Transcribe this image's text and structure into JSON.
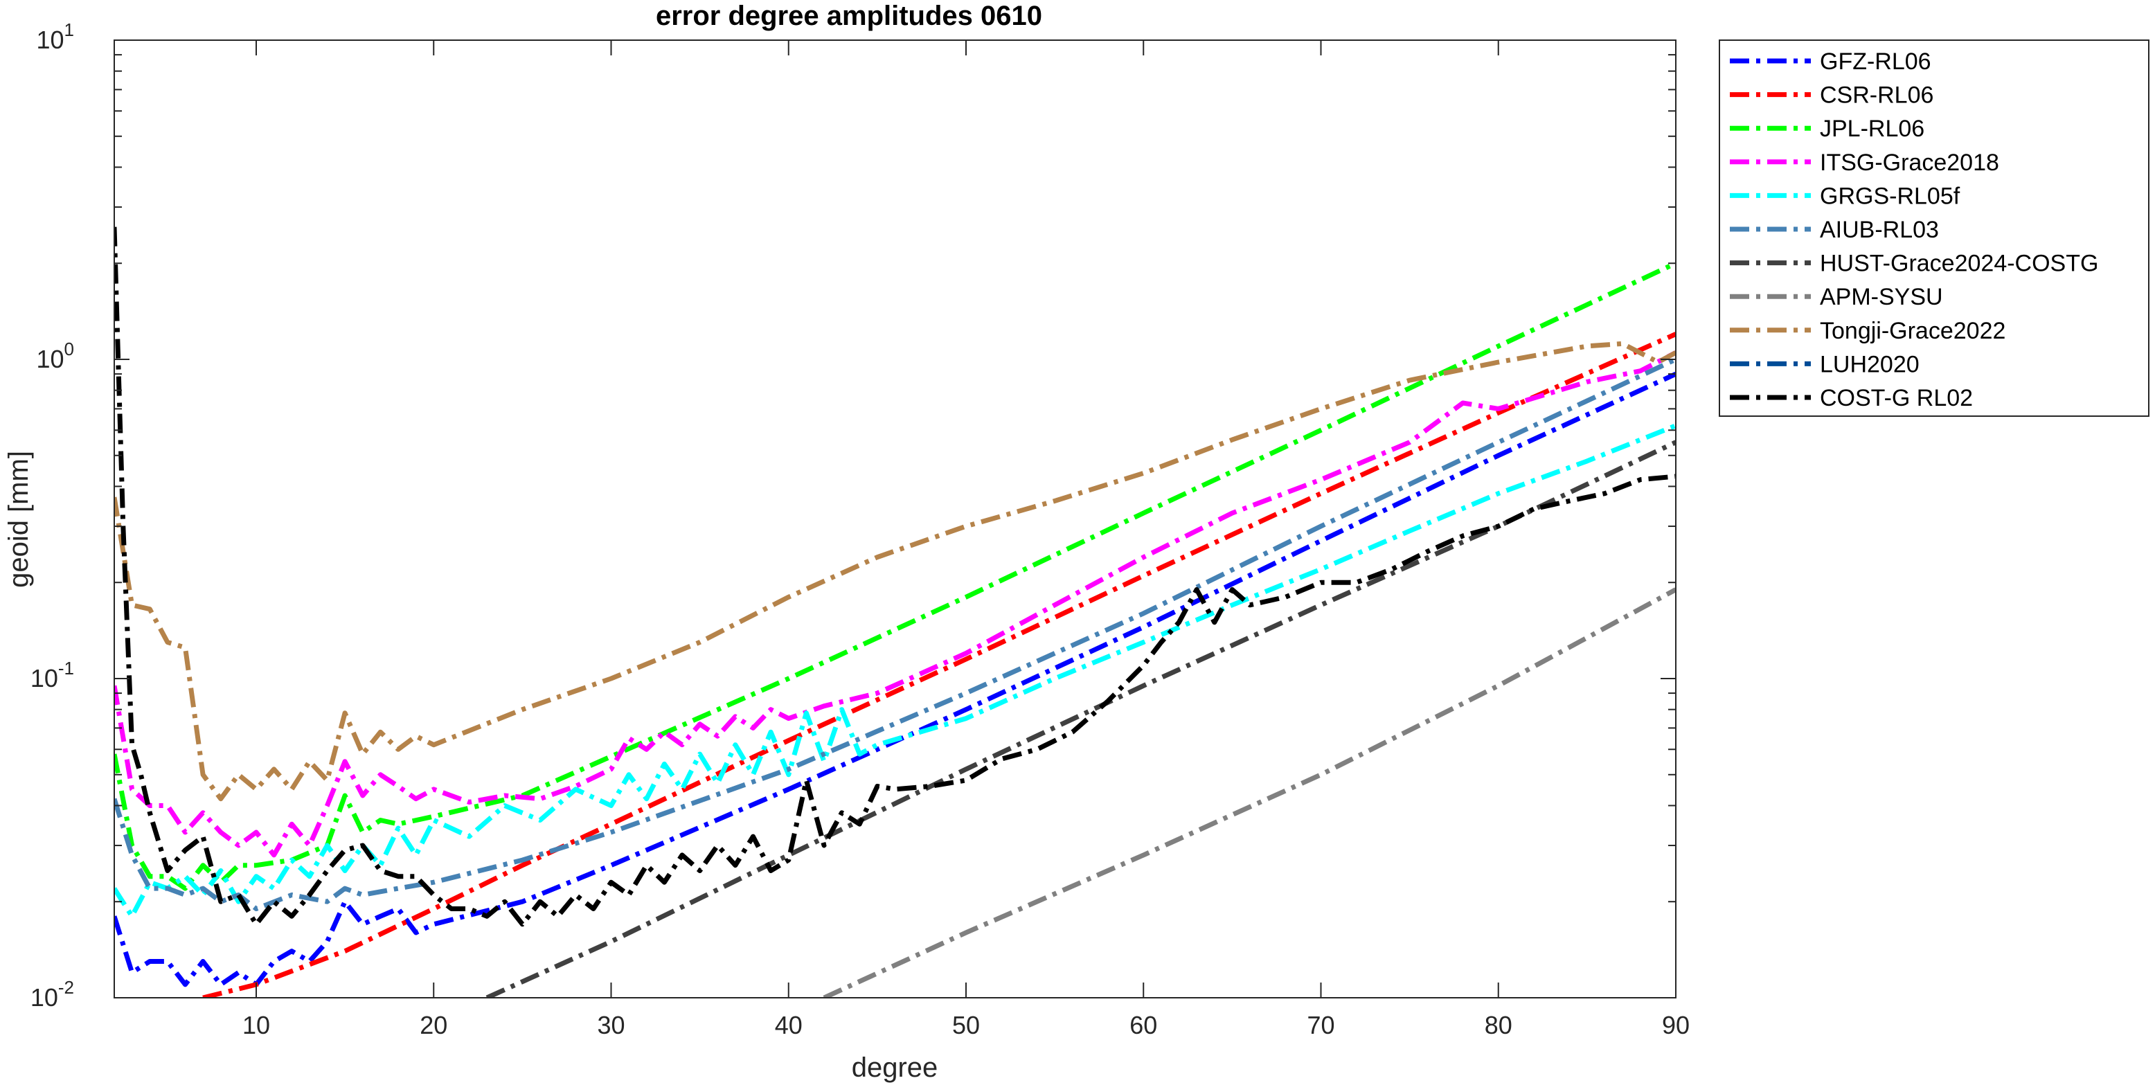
{
  "chart_data": {
    "type": "line",
    "title": "error degree amplitudes 0610",
    "xlabel": "degree",
    "ylabel": "geoid [mm]",
    "xlim": [
      2,
      90
    ],
    "ylim": [
      0.01,
      10
    ],
    "yscale": "log",
    "grid": false,
    "legend_position": "outside-right",
    "xticks": [
      10,
      20,
      30,
      40,
      50,
      60,
      70,
      80,
      90
    ],
    "yticks": [
      {
        "value": 0.01,
        "base": "10",
        "exp": "-2"
      },
      {
        "value": 0.1,
        "base": "10",
        "exp": "-1"
      },
      {
        "value": 1,
        "base": "10",
        "exp": "0"
      },
      {
        "value": 10,
        "base": "10",
        "exp": "1"
      }
    ],
    "series": [
      {
        "name": "GFZ-RL06",
        "color": "#0000ff",
        "x": [
          2,
          3,
          4,
          5,
          6,
          7,
          8,
          9,
          10,
          11,
          12,
          13,
          14,
          15,
          16,
          17,
          18,
          19,
          20,
          25,
          30,
          40,
          50,
          60,
          70,
          80,
          90
        ],
        "y": [
          0.018,
          0.012,
          0.013,
          0.013,
          0.011,
          0.013,
          0.011,
          0.012,
          0.011,
          0.013,
          0.014,
          0.013,
          0.015,
          0.02,
          0.017,
          0.018,
          0.019,
          0.016,
          0.017,
          0.02,
          0.026,
          0.045,
          0.08,
          0.145,
          0.27,
          0.5,
          0.9
        ]
      },
      {
        "name": "CSR-RL06",
        "color": "#ff0000",
        "x": [
          7,
          10,
          15,
          20,
          25,
          30,
          40,
          50,
          60,
          70,
          80,
          90
        ],
        "y": [
          0.01,
          0.011,
          0.014,
          0.019,
          0.026,
          0.035,
          0.064,
          0.115,
          0.21,
          0.38,
          0.68,
          1.2
        ]
      },
      {
        "name": "JPL-RL06",
        "color": "#00ff00",
        "x": [
          2,
          3,
          4,
          5,
          6,
          7,
          8,
          9,
          10,
          12,
          14,
          15,
          16,
          17,
          18,
          20,
          25,
          30,
          40,
          50,
          60,
          70,
          80,
          90
        ],
        "y": [
          0.058,
          0.03,
          0.024,
          0.024,
          0.022,
          0.026,
          0.023,
          0.026,
          0.026,
          0.027,
          0.03,
          0.043,
          0.033,
          0.036,
          0.035,
          0.037,
          0.043,
          0.057,
          0.1,
          0.18,
          0.33,
          0.6,
          1.1,
          2.0
        ]
      },
      {
        "name": "ITSG-Grace2018",
        "color": "#ff00ff",
        "x": [
          2,
          3,
          4,
          5,
          6,
          7,
          8,
          9,
          10,
          11,
          12,
          13,
          14,
          15,
          16,
          17,
          18,
          19,
          20,
          22,
          24,
          26,
          28,
          30,
          31,
          32,
          33,
          34,
          35,
          36,
          37,
          38,
          39,
          40,
          42,
          45,
          50,
          55,
          60,
          65,
          70,
          75,
          78,
          80,
          85,
          88,
          90
        ],
        "y": [
          0.095,
          0.045,
          0.04,
          0.04,
          0.033,
          0.038,
          0.033,
          0.03,
          0.033,
          0.028,
          0.035,
          0.03,
          0.04,
          0.055,
          0.043,
          0.05,
          0.046,
          0.042,
          0.045,
          0.041,
          0.043,
          0.042,
          0.046,
          0.052,
          0.065,
          0.06,
          0.068,
          0.062,
          0.072,
          0.066,
          0.076,
          0.07,
          0.08,
          0.075,
          0.082,
          0.09,
          0.12,
          0.17,
          0.24,
          0.33,
          0.42,
          0.55,
          0.73,
          0.7,
          0.85,
          0.92,
          1.05
        ]
      },
      {
        "name": "GRGS-RL05f",
        "color": "#00ffff",
        "x": [
          2,
          3,
          4,
          5,
          6,
          7,
          8,
          9,
          10,
          11,
          12,
          13,
          14,
          15,
          16,
          17,
          18,
          19,
          20,
          22,
          24,
          26,
          28,
          30,
          31,
          32,
          33,
          34,
          35,
          36,
          37,
          38,
          39,
          40,
          41,
          42,
          43,
          44,
          45,
          50,
          55,
          60,
          65,
          70,
          75,
          80,
          85,
          90
        ],
        "y": [
          0.022,
          0.018,
          0.023,
          0.022,
          0.024,
          0.021,
          0.025,
          0.02,
          0.024,
          0.022,
          0.027,
          0.024,
          0.03,
          0.025,
          0.03,
          0.026,
          0.034,
          0.028,
          0.036,
          0.032,
          0.04,
          0.036,
          0.045,
          0.04,
          0.05,
          0.042,
          0.054,
          0.045,
          0.058,
          0.047,
          0.062,
          0.05,
          0.068,
          0.05,
          0.078,
          0.055,
          0.08,
          0.058,
          0.062,
          0.075,
          0.1,
          0.13,
          0.17,
          0.22,
          0.29,
          0.38,
          0.48,
          0.62
        ]
      },
      {
        "name": "AIUB-RL03",
        "color": "#4682b4",
        "x": [
          2,
          3,
          4,
          5,
          6,
          7,
          8,
          9,
          10,
          12,
          14,
          15,
          16,
          18,
          20,
          25,
          30,
          40,
          50,
          60,
          70,
          80,
          90
        ],
        "y": [
          0.042,
          0.028,
          0.022,
          0.022,
          0.021,
          0.022,
          0.02,
          0.021,
          0.019,
          0.021,
          0.02,
          0.022,
          0.021,
          0.022,
          0.023,
          0.027,
          0.033,
          0.052,
          0.09,
          0.16,
          0.3,
          0.55,
          1.0
        ]
      },
      {
        "name": "HUST-Grace2024-COSTG",
        "color": "#404040",
        "x": [
          23,
          30,
          40,
          50,
          60,
          70,
          80,
          90
        ],
        "y": [
          0.01,
          0.015,
          0.028,
          0.052,
          0.095,
          0.17,
          0.3,
          0.55
        ]
      },
      {
        "name": "APM-SYSU",
        "color": "#808080",
        "x": [
          42,
          50,
          60,
          70,
          80,
          90
        ],
        "y": [
          0.01,
          0.016,
          0.028,
          0.05,
          0.095,
          0.19
        ]
      },
      {
        "name": "Tongji-Grace2022",
        "color": "#b5834a",
        "x": [
          2,
          3,
          4,
          5,
          6,
          7,
          8,
          9,
          10,
          11,
          12,
          13,
          14,
          15,
          16,
          17,
          18,
          19,
          20,
          25,
          30,
          35,
          40,
          45,
          50,
          55,
          60,
          65,
          70,
          75,
          80,
          83,
          85,
          87,
          89,
          90
        ],
        "y": [
          0.37,
          0.17,
          0.165,
          0.13,
          0.125,
          0.05,
          0.042,
          0.05,
          0.045,
          0.052,
          0.045,
          0.055,
          0.048,
          0.078,
          0.058,
          0.068,
          0.06,
          0.066,
          0.062,
          0.08,
          0.1,
          0.13,
          0.18,
          0.24,
          0.3,
          0.36,
          0.44,
          0.56,
          0.7,
          0.86,
          0.98,
          1.05,
          1.1,
          1.12,
          0.98,
          1.05
        ]
      },
      {
        "name": "LUH2020",
        "color": "#004c97",
        "x": [],
        "y": []
      },
      {
        "name": "COST-G RL02",
        "color": "#000000",
        "x": [
          2,
          2.5,
          3,
          3.5,
          4,
          5,
          6,
          7,
          8,
          9,
          10,
          11,
          12,
          13,
          14,
          15,
          16,
          17,
          18,
          19,
          20,
          21,
          22,
          23,
          24,
          25,
          26,
          27,
          28,
          29,
          30,
          31,
          32,
          33,
          34,
          35,
          36,
          37,
          38,
          39,
          40,
          41,
          42,
          43,
          44,
          45,
          46,
          48,
          50,
          52,
          54,
          56,
          58,
          60,
          61,
          62,
          63,
          64,
          65,
          66,
          68,
          70,
          72,
          74,
          76,
          78,
          80,
          82,
          84,
          86,
          88,
          90
        ],
        "y": [
          2.6,
          0.3,
          0.062,
          0.05,
          0.038,
          0.025,
          0.029,
          0.032,
          0.02,
          0.021,
          0.017,
          0.02,
          0.018,
          0.021,
          0.025,
          0.029,
          0.03,
          0.025,
          0.024,
          0.024,
          0.021,
          0.019,
          0.019,
          0.018,
          0.02,
          0.017,
          0.02,
          0.018,
          0.021,
          0.019,
          0.023,
          0.021,
          0.026,
          0.023,
          0.028,
          0.025,
          0.03,
          0.026,
          0.032,
          0.025,
          0.027,
          0.048,
          0.03,
          0.038,
          0.035,
          0.046,
          0.045,
          0.046,
          0.048,
          0.056,
          0.06,
          0.068,
          0.085,
          0.11,
          0.13,
          0.15,
          0.19,
          0.15,
          0.19,
          0.17,
          0.18,
          0.2,
          0.2,
          0.22,
          0.25,
          0.28,
          0.3,
          0.34,
          0.36,
          0.38,
          0.42,
          0.43
        ]
      }
    ]
  }
}
